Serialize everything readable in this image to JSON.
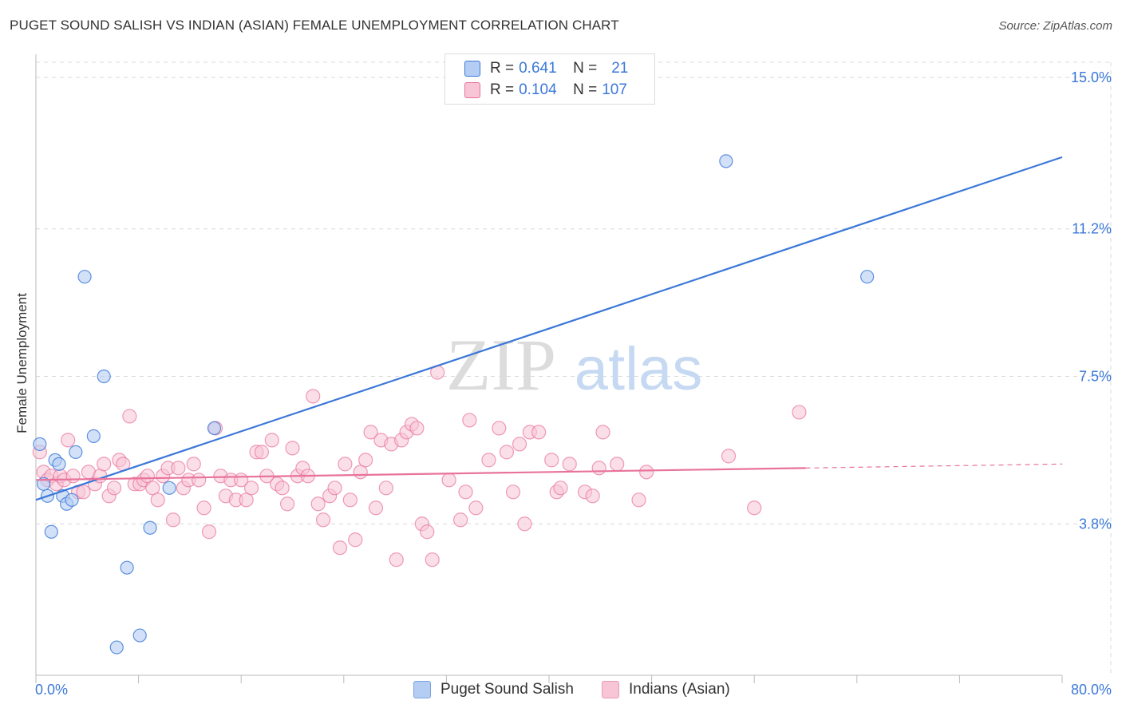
{
  "title": "PUGET SOUND SALISH VS INDIAN (ASIAN) FEMALE UNEMPLOYMENT CORRELATION CHART",
  "source": "Source: ZipAtlas.com",
  "watermark": {
    "zip": "ZIP",
    "atlas": "atlas"
  },
  "colors": {
    "blue": "#3b78d8",
    "blue_fill": "#b5cdf3",
    "pink": "#e8729b",
    "pink_fill": "#f7c5d5",
    "grid": "#d9d9d9",
    "axis_text": "#3b78d8"
  },
  "legend": {
    "rows": [
      {
        "r_label": "R =",
        "r_value": "0.641",
        "n_label": "N =",
        "n_value": "21"
      },
      {
        "r_label": "R =",
        "r_value": "0.104",
        "n_label": "N =",
        "n_value": "107"
      }
    ]
  },
  "bottom_legend": {
    "items": [
      {
        "label": "Puget Sound Salish"
      },
      {
        "label": "Indians (Asian)"
      }
    ]
  },
  "chart_data": {
    "type": "scatter",
    "title": "PUGET SOUND SALISH VS INDIAN (ASIAN) FEMALE UNEMPLOYMENT CORRELATION CHART",
    "xlabel": "",
    "ylabel": "Female Unemployment",
    "xlim": [
      0,
      80
    ],
    "ylim": [
      0,
      16
    ],
    "x_tick_labels": [
      "0.0%",
      "80.0%"
    ],
    "y_ticks": [
      3.8,
      7.5,
      11.2,
      15.0
    ],
    "y_tick_labels": [
      "3.8%",
      "7.5%",
      "11.2%",
      "15.0%"
    ],
    "grid": true,
    "legend_position": "top-center",
    "series": [
      {
        "name": "Puget Sound Salish",
        "color": "#3b78d8",
        "points": [
          [
            0.3,
            5.8
          ],
          [
            0.6,
            4.8
          ],
          [
            0.9,
            4.5
          ],
          [
            1.2,
            3.6
          ],
          [
            1.5,
            5.4
          ],
          [
            1.8,
            5.3
          ],
          [
            2.1,
            4.5
          ],
          [
            2.4,
            4.3
          ],
          [
            2.8,
            4.4
          ],
          [
            3.1,
            5.6
          ],
          [
            3.8,
            10.0
          ],
          [
            4.5,
            6.0
          ],
          [
            5.3,
            7.5
          ],
          [
            6.3,
            0.7
          ],
          [
            7.1,
            2.7
          ],
          [
            8.1,
            1.0
          ],
          [
            8.9,
            3.7
          ],
          [
            10.4,
            4.7
          ],
          [
            13.9,
            6.2
          ],
          [
            53.8,
            12.9
          ],
          [
            64.8,
            10.0
          ]
        ],
        "trend": {
          "x": [
            0,
            80
          ],
          "y": [
            4.4,
            13.0
          ]
        }
      },
      {
        "name": "Indians (Asian)",
        "color": "#e8729b",
        "points": [
          [
            0.3,
            5.6
          ],
          [
            0.6,
            5.1
          ],
          [
            0.9,
            4.9
          ],
          [
            1.2,
            5.0
          ],
          [
            1.6,
            4.8
          ],
          [
            1.9,
            5.0
          ],
          [
            2.2,
            4.9
          ],
          [
            2.5,
            5.9
          ],
          [
            2.9,
            5.0
          ],
          [
            3.3,
            4.6
          ],
          [
            3.7,
            4.6
          ],
          [
            4.1,
            5.1
          ],
          [
            4.6,
            4.8
          ],
          [
            5.0,
            5.0
          ],
          [
            5.3,
            5.3
          ],
          [
            5.7,
            4.5
          ],
          [
            6.1,
            4.7
          ],
          [
            6.5,
            5.4
          ],
          [
            6.8,
            5.3
          ],
          [
            7.3,
            6.5
          ],
          [
            7.7,
            4.8
          ],
          [
            8.1,
            4.8
          ],
          [
            8.4,
            4.9
          ],
          [
            8.7,
            5.0
          ],
          [
            9.1,
            4.7
          ],
          [
            9.5,
            4.4
          ],
          [
            9.9,
            5.0
          ],
          [
            10.3,
            5.2
          ],
          [
            10.7,
            3.9
          ],
          [
            11.1,
            5.2
          ],
          [
            11.5,
            4.7
          ],
          [
            11.9,
            4.9
          ],
          [
            12.3,
            5.3
          ],
          [
            12.7,
            4.9
          ],
          [
            13.1,
            4.2
          ],
          [
            13.5,
            3.6
          ],
          [
            14.0,
            6.2
          ],
          [
            14.4,
            5.0
          ],
          [
            14.8,
            4.5
          ],
          [
            15.2,
            4.9
          ],
          [
            15.6,
            4.4
          ],
          [
            16.0,
            4.9
          ],
          [
            16.4,
            4.4
          ],
          [
            16.8,
            4.7
          ],
          [
            17.2,
            5.6
          ],
          [
            17.6,
            5.6
          ],
          [
            18.0,
            5.0
          ],
          [
            18.4,
            5.9
          ],
          [
            18.8,
            4.8
          ],
          [
            19.2,
            4.7
          ],
          [
            19.6,
            4.3
          ],
          [
            20.0,
            5.7
          ],
          [
            20.4,
            5.0
          ],
          [
            20.8,
            5.2
          ],
          [
            21.2,
            5.0
          ],
          [
            21.6,
            7.0
          ],
          [
            22.0,
            4.3
          ],
          [
            22.4,
            3.9
          ],
          [
            22.9,
            4.5
          ],
          [
            23.3,
            4.7
          ],
          [
            23.7,
            3.2
          ],
          [
            24.1,
            5.3
          ],
          [
            24.5,
            4.4
          ],
          [
            24.9,
            3.4
          ],
          [
            25.3,
            5.1
          ],
          [
            25.7,
            5.4
          ],
          [
            26.1,
            6.1
          ],
          [
            26.5,
            4.2
          ],
          [
            26.9,
            5.9
          ],
          [
            27.3,
            4.7
          ],
          [
            27.7,
            5.8
          ],
          [
            28.1,
            2.9
          ],
          [
            28.5,
            5.9
          ],
          [
            28.9,
            6.1
          ],
          [
            29.3,
            6.3
          ],
          [
            29.7,
            6.2
          ],
          [
            30.1,
            3.8
          ],
          [
            30.5,
            3.6
          ],
          [
            30.9,
            2.9
          ],
          [
            31.3,
            7.6
          ],
          [
            32.2,
            4.9
          ],
          [
            33.1,
            3.9
          ],
          [
            33.5,
            4.6
          ],
          [
            33.8,
            6.4
          ],
          [
            34.3,
            4.2
          ],
          [
            35.3,
            5.4
          ],
          [
            36.1,
            6.2
          ],
          [
            36.7,
            5.6
          ],
          [
            37.2,
            4.6
          ],
          [
            37.7,
            5.8
          ],
          [
            38.1,
            3.8
          ],
          [
            38.5,
            6.1
          ],
          [
            39.2,
            6.1
          ],
          [
            40.2,
            5.4
          ],
          [
            40.6,
            4.6
          ],
          [
            40.9,
            4.7
          ],
          [
            41.6,
            5.3
          ],
          [
            42.8,
            4.6
          ],
          [
            43.4,
            4.5
          ],
          [
            43.9,
            5.2
          ],
          [
            44.2,
            6.1
          ],
          [
            45.3,
            5.3
          ],
          [
            47.0,
            4.4
          ],
          [
            47.6,
            5.1
          ],
          [
            54.0,
            5.5
          ],
          [
            56.0,
            4.2
          ],
          [
            59.5,
            6.6
          ]
        ],
        "trend": {
          "x": [
            0,
            60
          ],
          "y": [
            4.9,
            5.2
          ]
        },
        "trend_extension": {
          "x": [
            60,
            80
          ],
          "y": [
            5.2,
            5.3
          ]
        }
      }
    ]
  }
}
